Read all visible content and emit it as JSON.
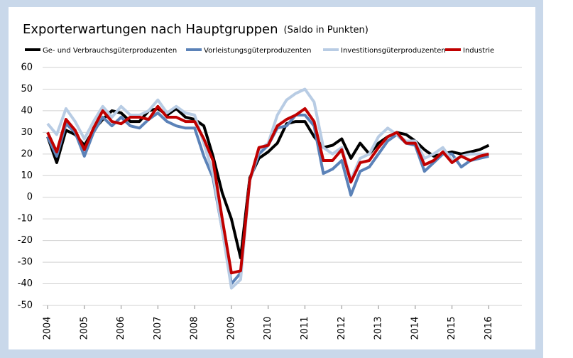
{
  "chart_data": {
    "type": "line",
    "title": "Exporterwartungen nach Hauptgruppen",
    "subtitle": "(Saldo in Punkten)",
    "x": [
      2004,
      2004.25,
      2004.5,
      2004.75,
      2005,
      2005.25,
      2005.5,
      2005.75,
      2006,
      2006.25,
      2006.5,
      2006.75,
      2007,
      2007.25,
      2007.5,
      2007.75,
      2008,
      2008.25,
      2008.5,
      2008.75,
      2009,
      2009.25,
      2009.5,
      2009.75,
      2010,
      2010.25,
      2010.5,
      2010.75,
      2011,
      2011.25,
      2011.5,
      2011.75,
      2012,
      2012.25,
      2012.5,
      2012.75,
      2013,
      2013.25,
      2013.5,
      2013.75,
      2014,
      2014.25,
      2014.5,
      2014.75,
      2015,
      2015.25,
      2015.5,
      2015.75,
      2016
    ],
    "series": [
      {
        "name": "Ge- und Verbrauchsgüterproduzenten",
        "color": "#000000",
        "values": [
          28,
          16,
          31,
          29,
          24,
          31,
          36,
          40,
          39,
          35,
          35,
          40,
          41,
          38,
          41,
          37,
          36,
          33,
          19,
          2,
          -10,
          -28,
          9,
          18,
          21,
          25,
          34,
          35,
          35,
          28,
          23,
          24,
          27,
          18,
          25,
          20,
          25,
          28,
          30,
          29,
          26,
          22,
          19,
          20,
          21,
          20,
          21,
          22,
          24
        ]
      },
      {
        "name": "Vorleistungsgüterproduzenten",
        "color": "#5b82b8",
        "values": [
          28,
          19,
          34,
          30,
          19,
          30,
          37,
          33,
          37,
          33,
          32,
          36,
          39,
          35,
          33,
          32,
          32,
          19,
          9,
          -15,
          -40,
          -35,
          8,
          20,
          24,
          32,
          33,
          38,
          38,
          33,
          11,
          13,
          17,
          1,
          12,
          14,
          20,
          26,
          29,
          25,
          24,
          12,
          16,
          20,
          20,
          14,
          17,
          18,
          19
        ]
      },
      {
        "name": "Investitionsgüterproduzenten",
        "color": "#b8cce4",
        "values": [
          34,
          29,
          41,
          35,
          27,
          35,
          42,
          37,
          42,
          38,
          38,
          40,
          45,
          39,
          42,
          39,
          38,
          25,
          11,
          -15,
          -42,
          -38,
          8,
          22,
          25,
          38,
          45,
          48,
          50,
          44,
          23,
          20,
          23,
          8,
          18,
          20,
          28,
          32,
          29,
          26,
          26,
          18,
          20,
          23,
          17,
          19,
          20,
          20,
          20
        ]
      },
      {
        "name": "Industrie",
        "color": "#c00000",
        "values": [
          30,
          21,
          36,
          31,
          22,
          32,
          40,
          35,
          34,
          37,
          37,
          36,
          42,
          37,
          37,
          35,
          35,
          27,
          17,
          -10,
          -35,
          -34,
          8,
          23,
          24,
          33,
          36,
          38,
          41,
          35,
          17,
          17,
          22,
          7,
          16,
          17,
          23,
          28,
          30,
          25,
          25,
          15,
          17,
          21,
          16,
          19,
          17,
          19,
          20
        ]
      }
    ],
    "xlim": [
      2003.865,
      2016.9
    ],
    "xticks": [
      2004,
      2005,
      2006,
      2007,
      2008,
      2009,
      2010,
      2011,
      2012,
      2013,
      2014,
      2015,
      2016
    ],
    "ylim": [
      -50,
      60
    ],
    "yticks": [
      -50,
      -40,
      -30,
      -20,
      -10,
      0,
      10,
      20,
      30,
      40,
      50,
      60
    ],
    "grid": true
  }
}
